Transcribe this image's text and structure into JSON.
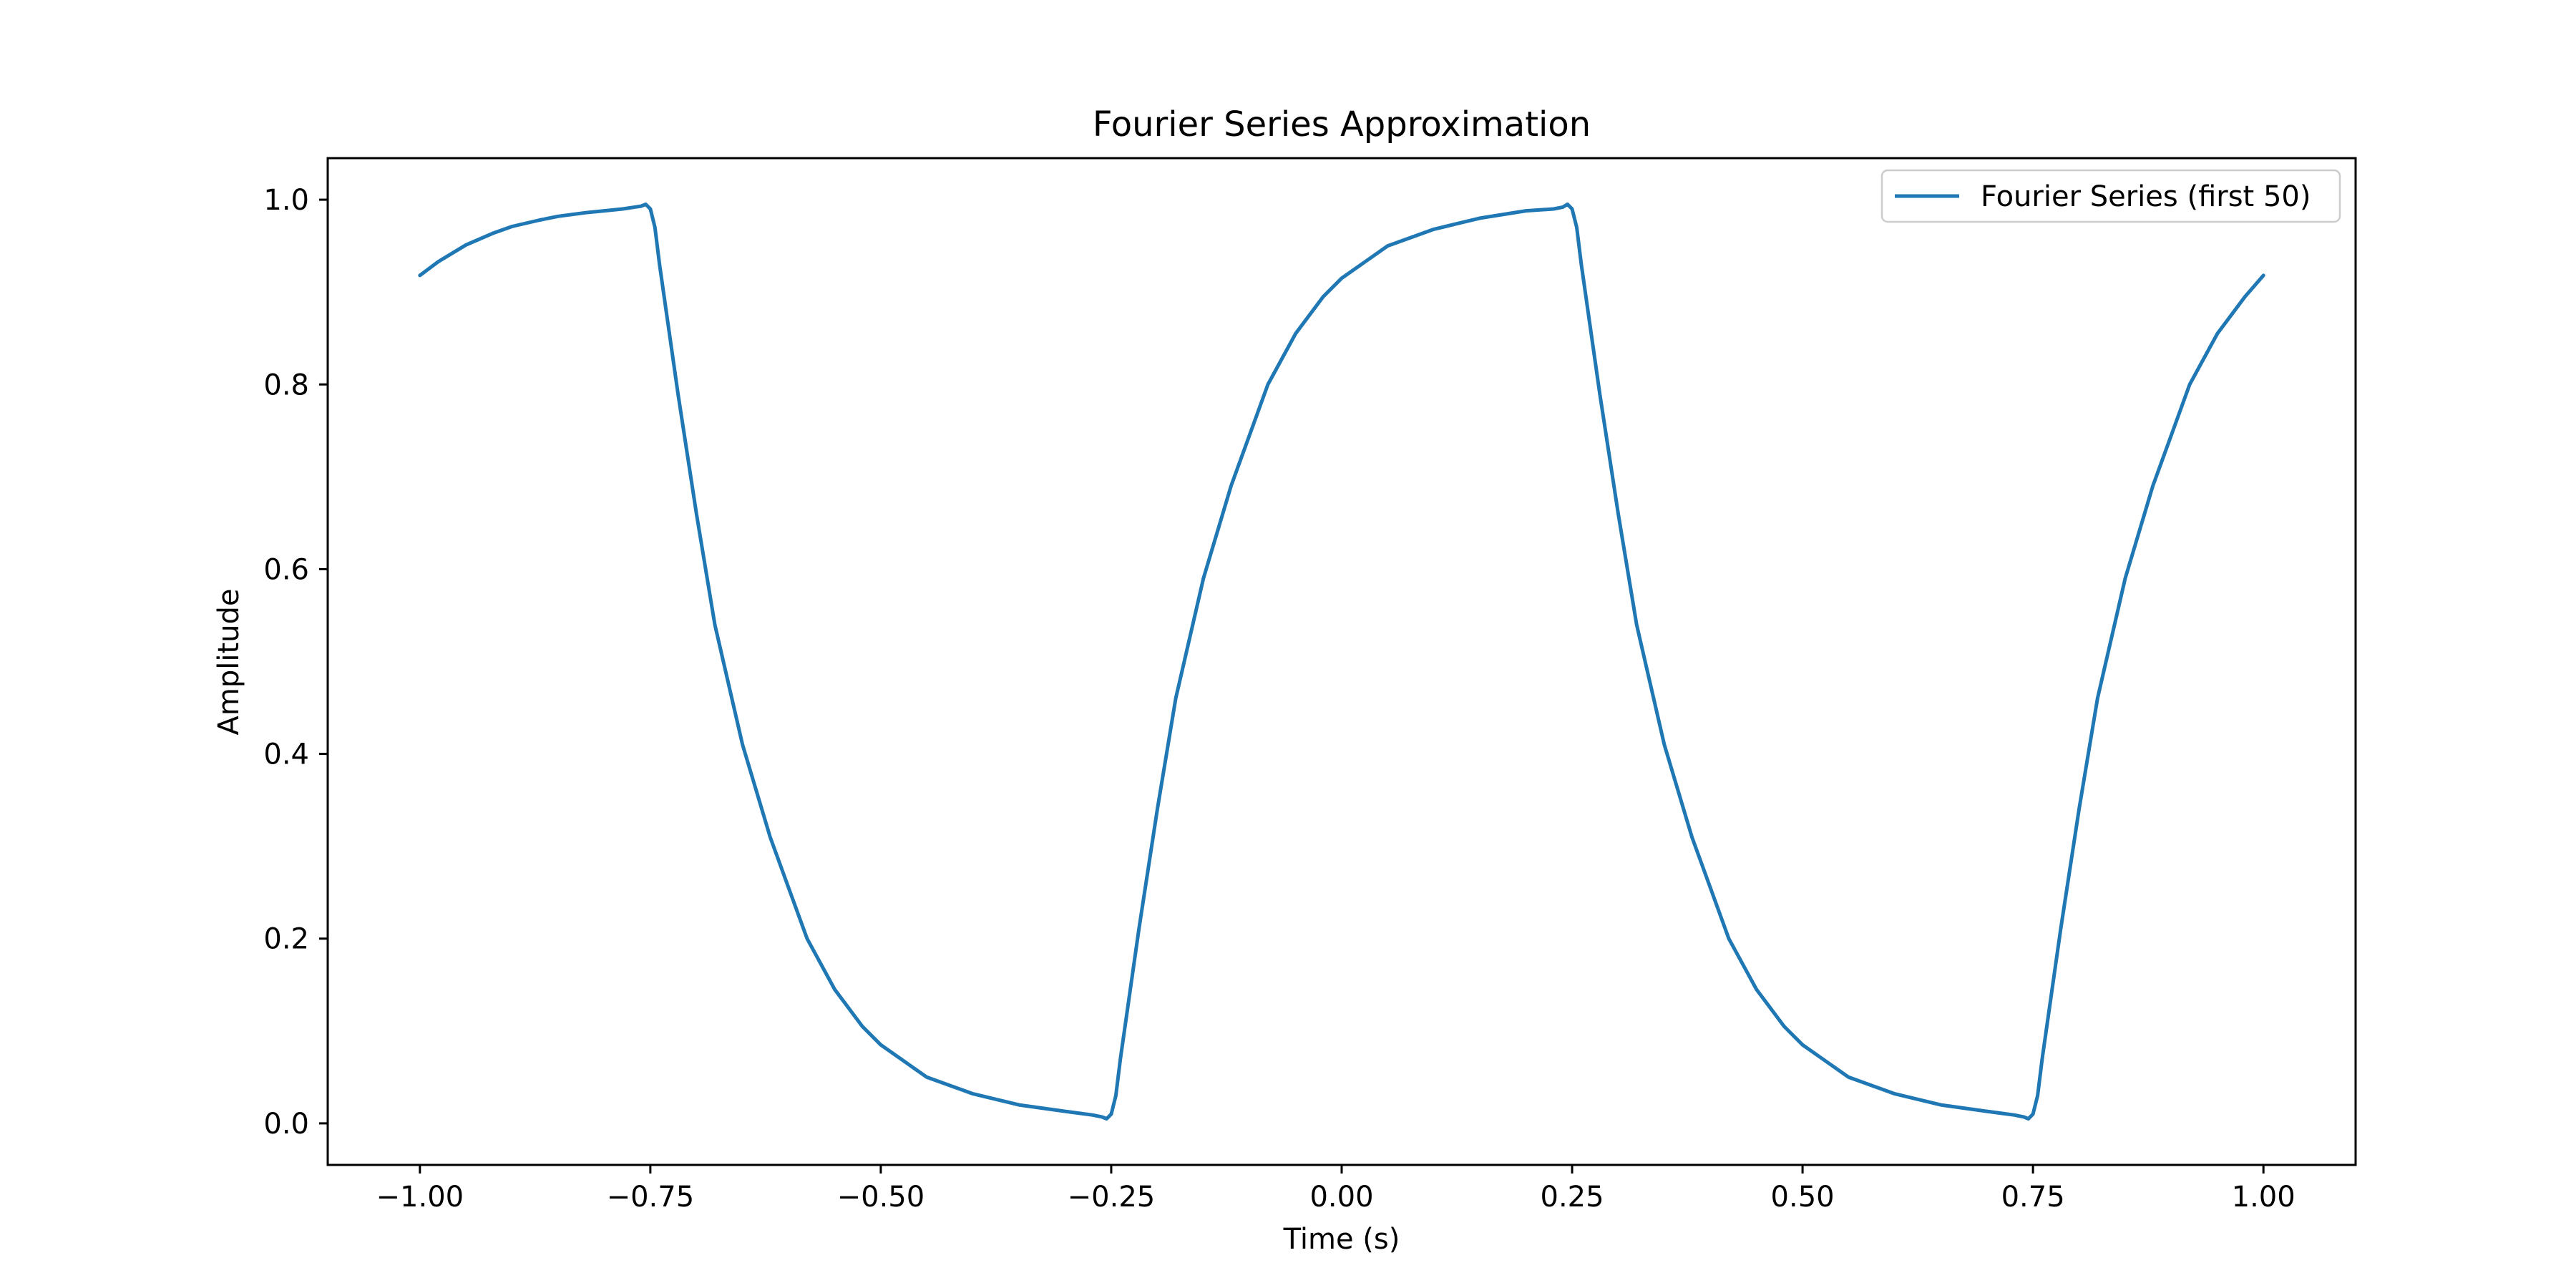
{
  "chart_data": {
    "type": "line",
    "title": "Fourier Series Approximation",
    "xlabel": "Time (s)",
    "ylabel": "Amplitude",
    "xlim": [
      -1.1,
      1.1
    ],
    "ylim": [
      -0.045,
      1.045
    ],
    "xticks": [
      -1.0,
      -0.75,
      -0.5,
      -0.25,
      0.0,
      0.25,
      0.5,
      0.75,
      1.0
    ],
    "xtick_labels": [
      "−1.00",
      "−0.75",
      "−0.50",
      "−0.25",
      "0.00",
      "0.25",
      "0.50",
      "0.75",
      "1.00"
    ],
    "yticks": [
      0.0,
      0.2,
      0.4,
      0.6,
      0.8,
      1.0
    ],
    "ytick_labels": [
      "0.0",
      "0.2",
      "0.4",
      "0.6",
      "0.8",
      "1.0"
    ],
    "grid": false,
    "legend": {
      "position": "upper right",
      "entries": [
        "Fourier Series (first 50)"
      ]
    },
    "series": [
      {
        "name": "Fourier Series (first 50)",
        "color": "#1f77b4",
        "points": [
          [
            -1.0,
            0.918
          ],
          [
            -0.98,
            0.933
          ],
          [
            -0.95,
            0.951
          ],
          [
            -0.92,
            0.964
          ],
          [
            -0.9,
            0.971
          ],
          [
            -0.87,
            0.978
          ],
          [
            -0.85,
            0.982
          ],
          [
            -0.82,
            0.986
          ],
          [
            -0.8,
            0.988
          ],
          [
            -0.78,
            0.99
          ],
          [
            -0.76,
            0.993
          ],
          [
            -0.755,
            0.995
          ],
          [
            -0.75,
            0.99
          ],
          [
            -0.745,
            0.97
          ],
          [
            -0.74,
            0.93
          ],
          [
            -0.73,
            0.86
          ],
          [
            -0.72,
            0.79
          ],
          [
            -0.7,
            0.66
          ],
          [
            -0.68,
            0.54
          ],
          [
            -0.65,
            0.41
          ],
          [
            -0.62,
            0.31
          ],
          [
            -0.6,
            0.255
          ],
          [
            -0.58,
            0.2
          ],
          [
            -0.55,
            0.145
          ],
          [
            -0.52,
            0.105
          ],
          [
            -0.5,
            0.085
          ],
          [
            -0.45,
            0.05
          ],
          [
            -0.4,
            0.032
          ],
          [
            -0.35,
            0.02
          ],
          [
            -0.3,
            0.013
          ],
          [
            -0.27,
            0.009
          ],
          [
            -0.26,
            0.007
          ],
          [
            -0.255,
            0.005
          ],
          [
            -0.25,
            0.01
          ],
          [
            -0.245,
            0.03
          ],
          [
            -0.24,
            0.07
          ],
          [
            -0.23,
            0.14
          ],
          [
            -0.22,
            0.21
          ],
          [
            -0.2,
            0.34
          ],
          [
            -0.18,
            0.46
          ],
          [
            -0.15,
            0.59
          ],
          [
            -0.12,
            0.69
          ],
          [
            -0.1,
            0.745
          ],
          [
            -0.08,
            0.8
          ],
          [
            -0.05,
            0.855
          ],
          [
            -0.02,
            0.895
          ],
          [
            0.0,
            0.915
          ],
          [
            0.05,
            0.95
          ],
          [
            0.1,
            0.968
          ],
          [
            0.15,
            0.98
          ],
          [
            0.2,
            0.988
          ],
          [
            0.23,
            0.99
          ],
          [
            0.24,
            0.992
          ],
          [
            0.245,
            0.995
          ],
          [
            0.25,
            0.99
          ],
          [
            0.255,
            0.97
          ],
          [
            0.26,
            0.93
          ],
          [
            0.27,
            0.86
          ],
          [
            0.28,
            0.79
          ],
          [
            0.3,
            0.66
          ],
          [
            0.32,
            0.54
          ],
          [
            0.35,
            0.41
          ],
          [
            0.38,
            0.31
          ],
          [
            0.4,
            0.255
          ],
          [
            0.42,
            0.2
          ],
          [
            0.45,
            0.145
          ],
          [
            0.48,
            0.105
          ],
          [
            0.5,
            0.085
          ],
          [
            0.55,
            0.05
          ],
          [
            0.6,
            0.032
          ],
          [
            0.65,
            0.02
          ],
          [
            0.7,
            0.013
          ],
          [
            0.73,
            0.009
          ],
          [
            0.74,
            0.007
          ],
          [
            0.745,
            0.005
          ],
          [
            0.75,
            0.01
          ],
          [
            0.755,
            0.03
          ],
          [
            0.76,
            0.07
          ],
          [
            0.77,
            0.14
          ],
          [
            0.78,
            0.21
          ],
          [
            0.8,
            0.34
          ],
          [
            0.82,
            0.46
          ],
          [
            0.85,
            0.59
          ],
          [
            0.88,
            0.69
          ],
          [
            0.9,
            0.745
          ],
          [
            0.92,
            0.8
          ],
          [
            0.95,
            0.855
          ],
          [
            0.98,
            0.895
          ],
          [
            1.0,
            0.918
          ]
        ]
      }
    ]
  }
}
